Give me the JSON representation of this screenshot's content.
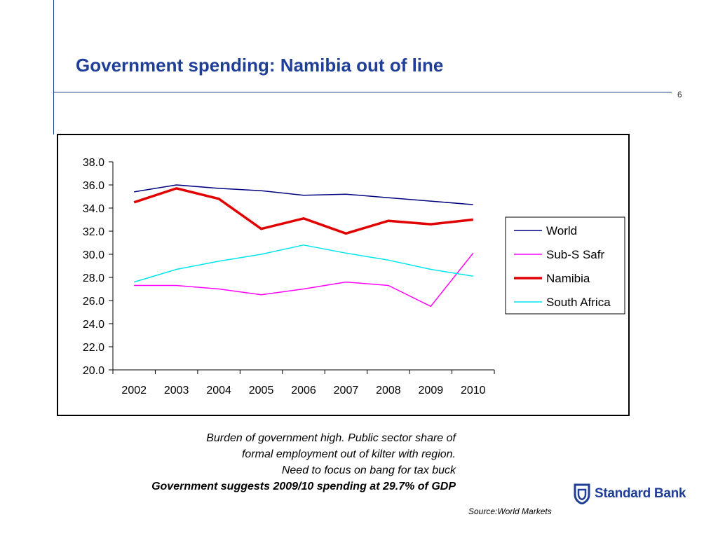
{
  "slide": {
    "title": "Government spending: Namibia out of line",
    "page_number": "6",
    "caption_lines": [
      "Burden of government high. Public sector share of",
      "formal employment out of kilter with region.",
      "Need to focus on bang for tax buck"
    ],
    "caption_bold": "Government suggests 2009/10 spending at 29.7% of GDP",
    "source": "Source:World Markets",
    "logo_text": "Standard Bank",
    "brand_color": "#1f3f97"
  },
  "chart_data": {
    "type": "line",
    "categories": [
      "2002",
      "2003",
      "2004",
      "2005",
      "2006",
      "2007",
      "2008",
      "2009",
      "2010"
    ],
    "ylim": [
      20.0,
      38.0
    ],
    "yticks": [
      "20.0",
      "22.0",
      "24.0",
      "26.0",
      "28.0",
      "30.0",
      "32.0",
      "34.0",
      "36.0",
      "38.0"
    ],
    "legend_position": "right",
    "grid": false,
    "series": [
      {
        "name": "World",
        "color": "#000080",
        "width": 1.5,
        "values": [
          35.4,
          36.0,
          35.7,
          35.5,
          35.1,
          35.2,
          34.9,
          34.6,
          34.3
        ]
      },
      {
        "name": "Sub-S Safr",
        "color": "#ff00ff",
        "width": 1.5,
        "values": [
          27.3,
          27.3,
          27.0,
          26.5,
          27.0,
          27.6,
          27.3,
          25.5,
          30.1
        ]
      },
      {
        "name": "Namibia",
        "color": "#e00000",
        "width": 3.5,
        "values": [
          34.5,
          35.7,
          34.8,
          32.2,
          33.1,
          31.8,
          32.9,
          32.6,
          33.0
        ]
      },
      {
        "name": "South Africa",
        "color": "#00e5ee",
        "width": 1.5,
        "values": [
          27.6,
          28.7,
          29.4,
          30.0,
          30.8,
          30.1,
          29.5,
          28.7,
          28.1
        ]
      }
    ]
  }
}
